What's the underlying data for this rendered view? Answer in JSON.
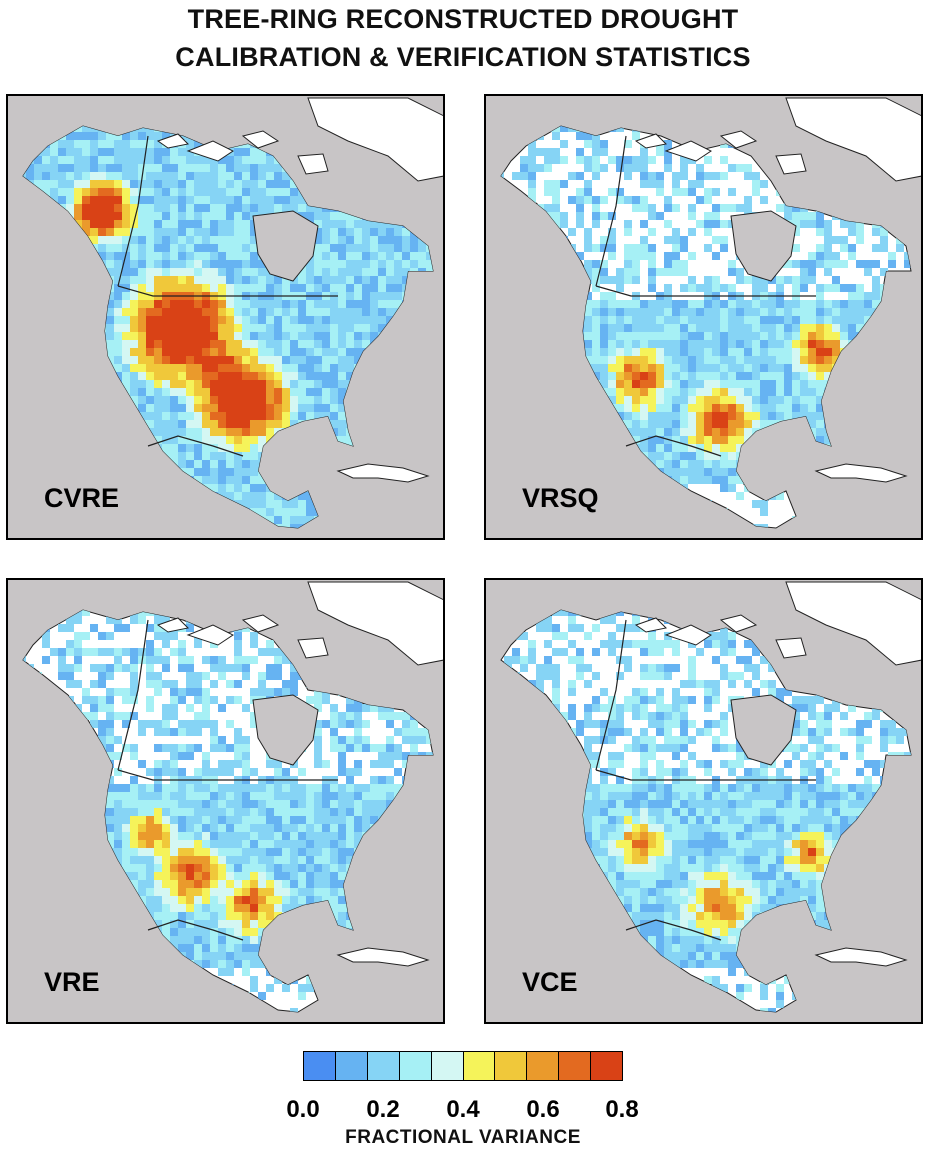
{
  "title": {
    "line1": "TREE-RING RECONSTRUCTED DROUGHT",
    "line2": "CALIBRATION & VERIFICATION STATISTICS"
  },
  "panels": [
    {
      "label": "CVRE"
    },
    {
      "label": "VRSQ"
    },
    {
      "label": "VRE"
    },
    {
      "label": "VCE"
    }
  ],
  "colorbar": {
    "colors": [
      "#4a8ef2",
      "#66b3f2",
      "#86d4f5",
      "#a6f0f5",
      "#d4f7f3",
      "#f5f35a",
      "#f0c83a",
      "#ea9a2c",
      "#e36a20",
      "#d94216"
    ],
    "ticks": [
      "0.0",
      "0.2",
      "0.4",
      "0.6",
      "0.8"
    ],
    "label": "FRACTIONAL VARIANCE"
  }
}
